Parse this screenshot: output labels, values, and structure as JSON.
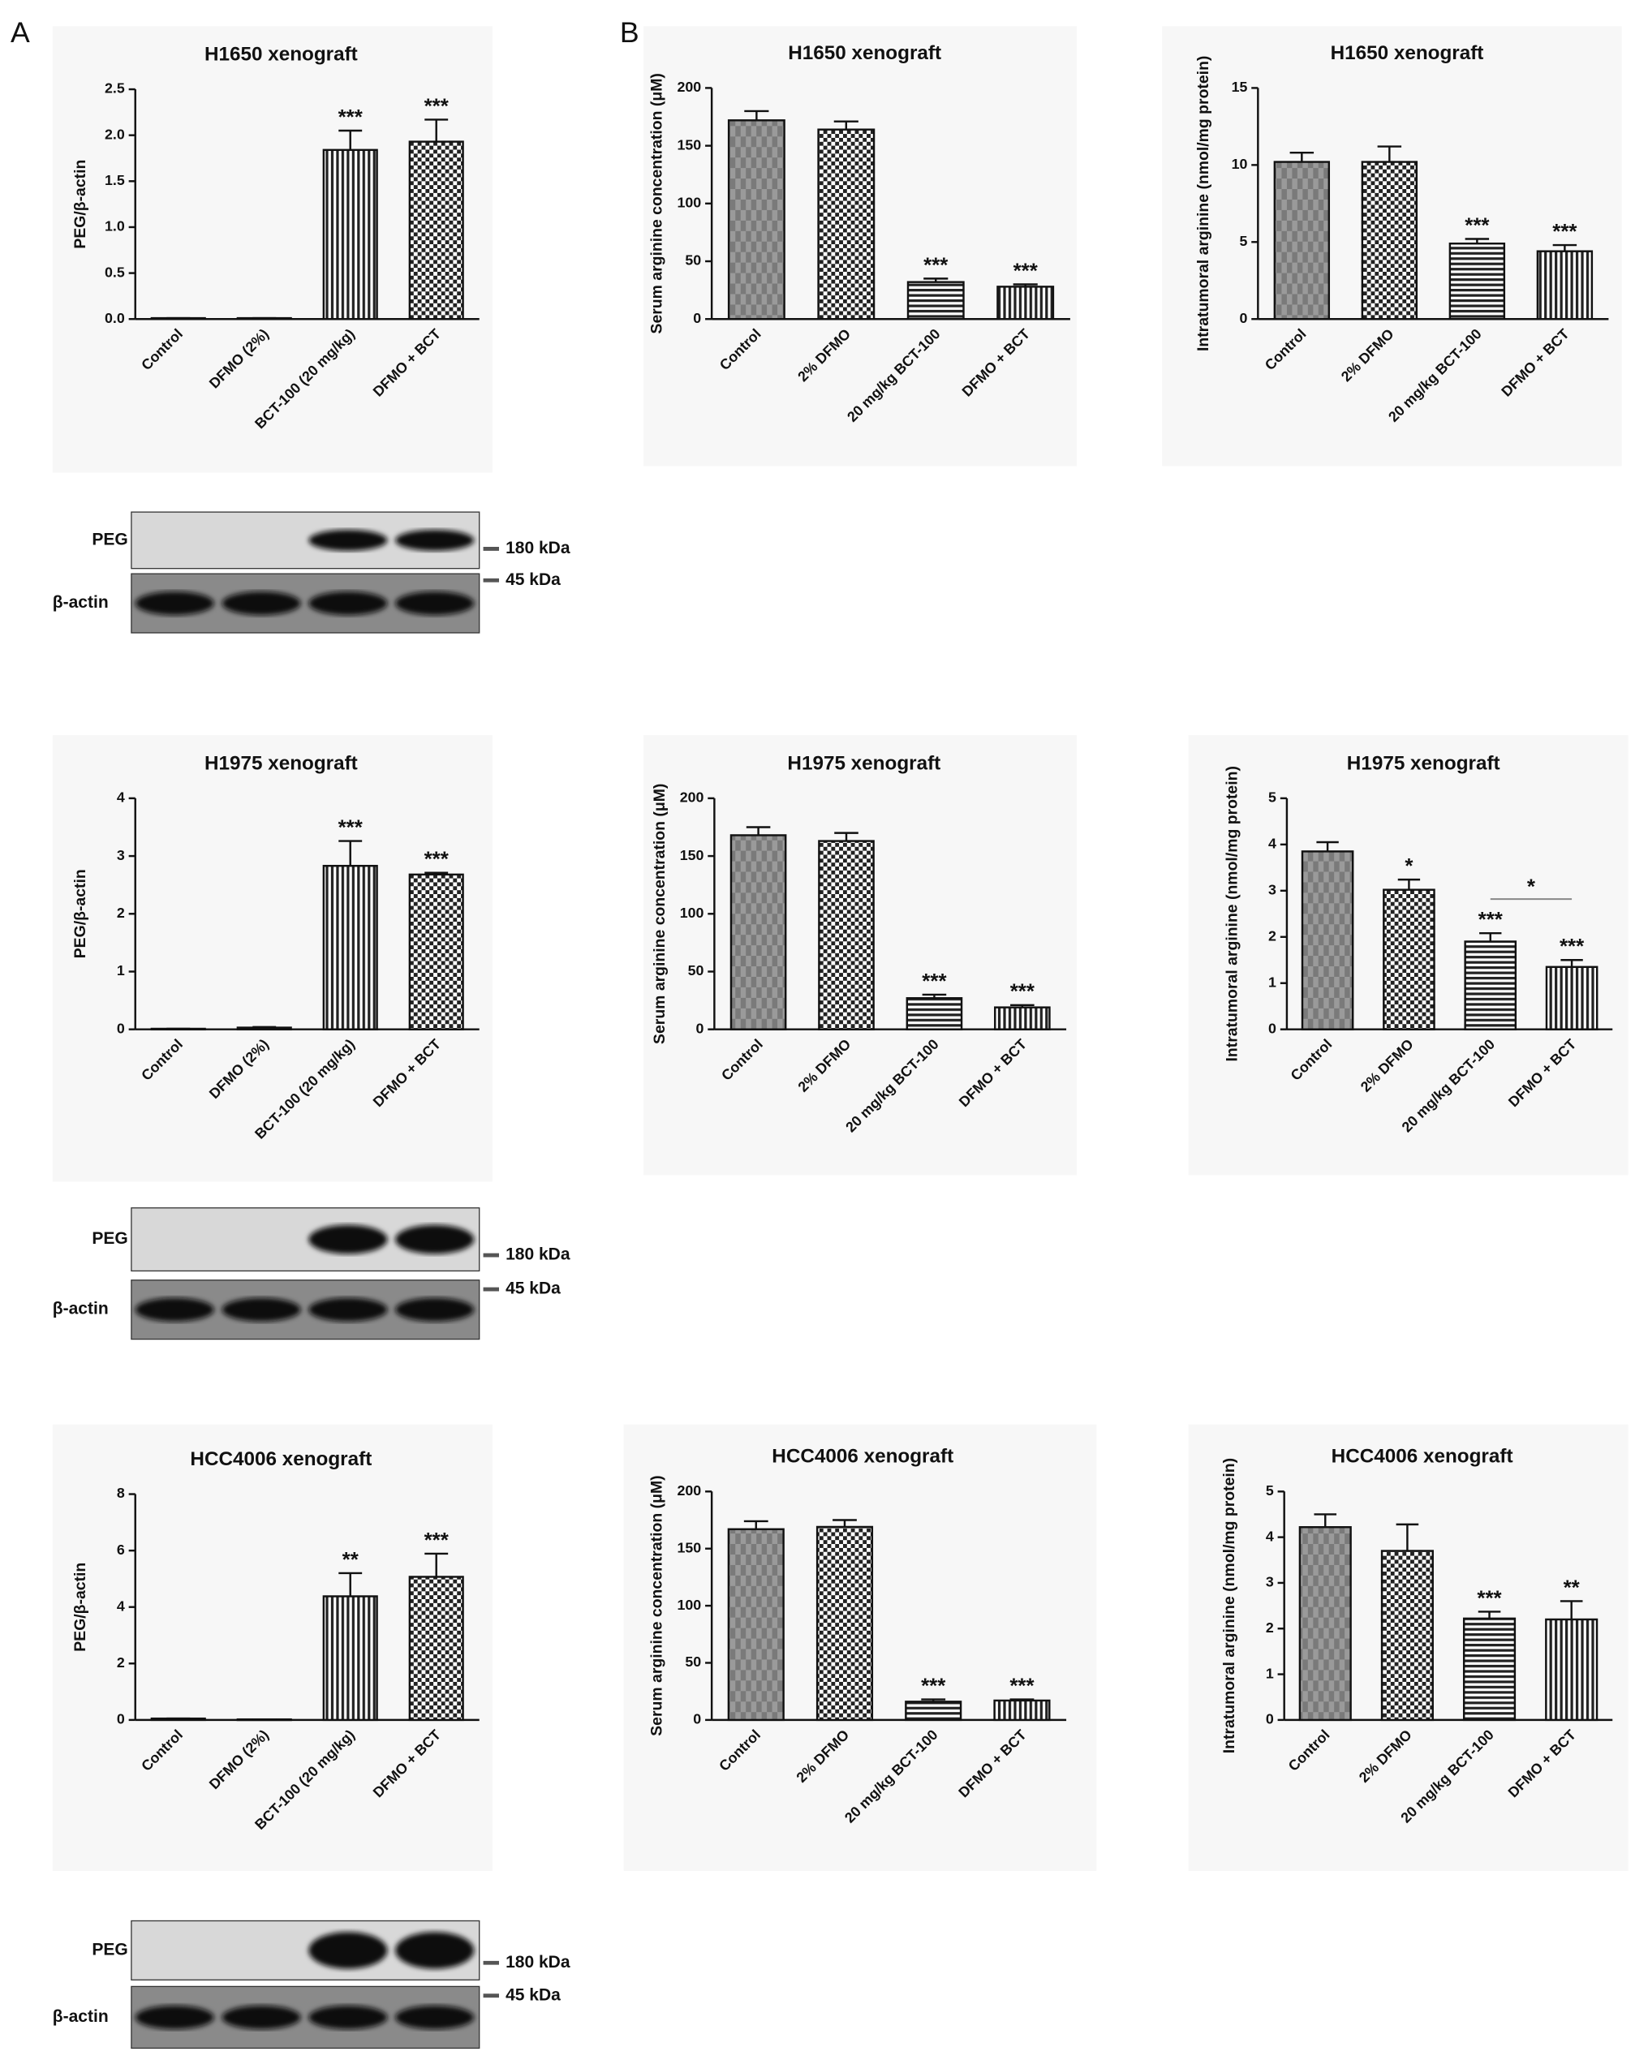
{
  "panel_labels": [
    "A",
    "B"
  ],
  "chart_data": [
    {
      "type": "bar",
      "title": "H1650 xenograft",
      "ylabel": "PEG/β-actin",
      "categories": [
        "Control",
        "DFMO (2%)",
        "BCT-100 (20 mg/kg)",
        "DFMO + BCT"
      ],
      "values": [
        0.01,
        0.01,
        1.84,
        1.93
      ],
      "errors": [
        0,
        0,
        0.21,
        0.24
      ],
      "annotations": [
        null,
        null,
        "***",
        "***"
      ],
      "patterns": [
        "plain",
        "plain",
        "vstripes",
        "checker"
      ],
      "ylim": [
        0,
        2.5
      ],
      "yticks": [
        {
          "value": 0,
          "label": "0.0"
        },
        0.5,
        {
          "value": 1,
          "label": "1.0"
        },
        1.5,
        {
          "value": 2,
          "label": "2.0"
        },
        2.5
      ]
    },
    {
      "type": "bar",
      "title": "H1650 xenograft",
      "ylabel": "Serum arginine concentration (μM)",
      "categories": [
        "Control",
        "2% DFMO",
        "20 mg/kg BCT-100",
        "DFMO + BCT"
      ],
      "values": [
        172,
        164,
        32,
        28
      ],
      "errors": [
        8,
        7,
        3,
        2
      ],
      "annotations": [
        null,
        null,
        "***",
        "***"
      ],
      "patterns": [
        "shade",
        "checker",
        "hstripes",
        "vstripes"
      ],
      "ylim": [
        0,
        200
      ],
      "yticks": [
        0,
        50,
        100,
        150,
        200
      ]
    },
    {
      "type": "bar",
      "title": "H1650 xenograft",
      "ylabel": "Intratumoral arginine (nmol/mg protein)",
      "categories": [
        "Control",
        "2% DFMO",
        "20 mg/kg BCT-100",
        "DFMO + BCT"
      ],
      "values": [
        10.2,
        10.2,
        4.9,
        4.4
      ],
      "errors": [
        0.6,
        1.0,
        0.3,
        0.4
      ],
      "annotations": [
        null,
        null,
        "***",
        "***"
      ],
      "patterns": [
        "shade",
        "checker",
        "hstripes",
        "vstripes"
      ],
      "ylim": [
        0,
        15
      ],
      "yticks": [
        0,
        5,
        10,
        15
      ]
    },
    {
      "type": "bar",
      "title": "H1975 xenograft",
      "ylabel": "PEG/β-actin",
      "categories": [
        "Control",
        "DFMO (2%)",
        "BCT-100 (20 mg/kg)",
        "DFMO + BCT"
      ],
      "values": [
        0.01,
        0.03,
        2.83,
        2.68
      ],
      "errors": [
        0,
        0.01,
        0.43,
        0.03
      ],
      "annotations": [
        null,
        null,
        "***",
        "***"
      ],
      "patterns": [
        "plain",
        "plain",
        "vstripes",
        "checker"
      ],
      "ylim": [
        0,
        4
      ],
      "yticks": [
        0,
        1,
        2,
        3,
        4
      ]
    },
    {
      "type": "bar",
      "title": "H1975 xenograft",
      "ylabel": "Serum arginine concentration (μM)",
      "categories": [
        "Control",
        "2% DFMO",
        "20 mg/kg BCT-100",
        "DFMO + BCT"
      ],
      "values": [
        168,
        163,
        27,
        19
      ],
      "errors": [
        7,
        7,
        3,
        2
      ],
      "annotations": [
        null,
        null,
        "***",
        "***"
      ],
      "patterns": [
        "shade",
        "checker",
        "hstripes",
        "vstripes"
      ],
      "ylim": [
        0,
        200
      ],
      "yticks": [
        0,
        50,
        100,
        150,
        200
      ]
    },
    {
      "type": "bar",
      "title": "H1975 xenograft",
      "ylabel": "Intratumoral arginine (nmol/mg protein)",
      "categories": [
        "Control",
        "2% DFMO",
        "20 mg/kg BCT-100",
        "DFMO + BCT"
      ],
      "values": [
        3.85,
        3.02,
        1.9,
        1.35
      ],
      "errors": [
        0.2,
        0.22,
        0.18,
        0.15
      ],
      "annotations": [
        null,
        "*",
        "***",
        "***"
      ],
      "bracket_label": "*",
      "patterns": [
        "shade",
        "checker",
        "hstripes",
        "vstripes"
      ],
      "ylim": [
        0,
        5
      ],
      "yticks": [
        0,
        1,
        2,
        3,
        4,
        5
      ]
    },
    {
      "type": "bar",
      "title": "HCC4006 xenograft",
      "ylabel": "PEG/β-actin",
      "categories": [
        "Control",
        "DFMO (2%)",
        "BCT-100 (20 mg/kg)",
        "DFMO + BCT"
      ],
      "values": [
        0.05,
        0.02,
        4.38,
        5.07
      ],
      "errors": [
        0,
        0,
        0.82,
        0.82
      ],
      "annotations": [
        null,
        null,
        "**",
        "***"
      ],
      "patterns": [
        "plain",
        "plain",
        "vstripes",
        "checker"
      ],
      "ylim": [
        0,
        8
      ],
      "yticks": [
        0,
        2,
        4,
        6,
        8
      ]
    },
    {
      "type": "bar",
      "title": "HCC4006 xenograft",
      "ylabel": "Serum arginine concentration (μM)",
      "categories": [
        "Control",
        "2% DFMO",
        "20 mg/kg BCT-100",
        "DFMO + BCT"
      ],
      "values": [
        167,
        169,
        16,
        17
      ],
      "errors": [
        7,
        6,
        2,
        1
      ],
      "annotations": [
        null,
        null,
        "***",
        "***"
      ],
      "patterns": [
        "shade",
        "checker",
        "hstripes",
        "vstripes"
      ],
      "ylim": [
        0,
        200
      ],
      "yticks": [
        0,
        50,
        100,
        150,
        200
      ]
    },
    {
      "type": "bar",
      "title": "HCC4006 xenograft",
      "ylabel": "Intratumoral arginine (nmol/mg protein)",
      "categories": [
        "Control",
        "2% DFMO",
        "20 mg/kg BCT-100",
        "DFMO + BCT"
      ],
      "values": [
        4.22,
        3.7,
        2.22,
        2.2
      ],
      "errors": [
        0.28,
        0.58,
        0.15,
        0.4
      ],
      "annotations": [
        null,
        null,
        "***",
        "**"
      ],
      "patterns": [
        "shade",
        "checker",
        "hstripes",
        "vstripes"
      ],
      "ylim": [
        0,
        5
      ],
      "yticks": [
        0,
        1,
        2,
        3,
        4,
        5
      ]
    }
  ],
  "blots": [
    {
      "rows": [
        "PEG",
        "β-actin"
      ],
      "markers": [
        "180 kDa",
        "45 kDa"
      ]
    },
    {
      "rows": [
        "PEG",
        "β-actin"
      ],
      "markers": [
        "180 kDa",
        "45 kDa"
      ]
    },
    {
      "rows": [
        "PEG",
        "β-actin"
      ],
      "markers": [
        "180 kDa",
        "45 kDa"
      ]
    }
  ]
}
